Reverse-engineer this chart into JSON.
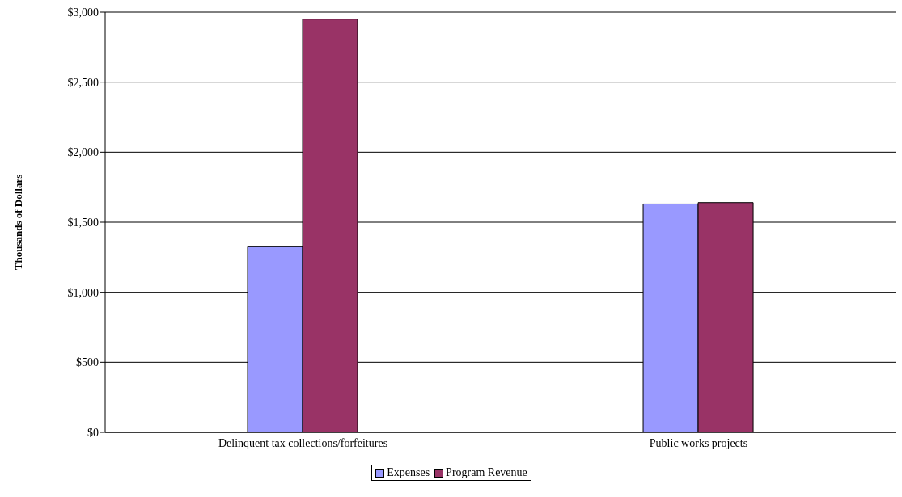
{
  "chart_data": {
    "type": "bar",
    "ylabel": "Thousands of Dollars",
    "categories": [
      "Delinquent tax collections/forfeitures",
      "Public works projects"
    ],
    "series": [
      {
        "name": "Expenses",
        "color": "#9999ff",
        "values": [
          1325,
          1630
        ]
      },
      {
        "name": "Program Revenue",
        "color": "#993366",
        "values": [
          2950,
          1640
        ]
      }
    ],
    "ylim": [
      0,
      3000
    ],
    "yticks": [
      {
        "value": 0,
        "label": "$0"
      },
      {
        "value": 500,
        "label": "$500"
      },
      {
        "value": 1000,
        "label": "$1,000"
      },
      {
        "value": 1500,
        "label": "$1,500"
      },
      {
        "value": 2000,
        "label": "$2,000"
      },
      {
        "value": 2500,
        "label": "$2,500"
      },
      {
        "value": 3000,
        "label": "$3,000"
      }
    ],
    "grid": "y",
    "legend": "bottom"
  }
}
